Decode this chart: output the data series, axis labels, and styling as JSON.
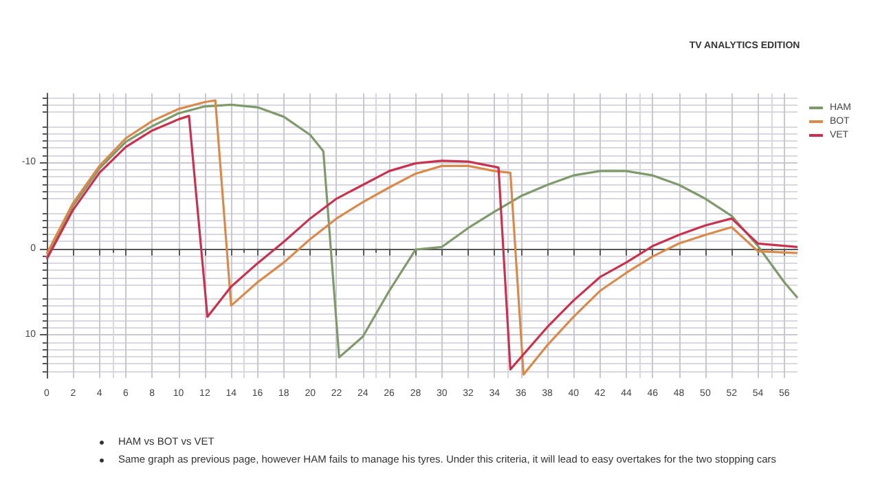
{
  "chart_data": {
    "type": "line",
    "subtitle": "TV ANALYTICS EDITION",
    "xlim": [
      0,
      57
    ],
    "xticks": [
      0,
      2,
      4,
      6,
      8,
      10,
      12,
      14,
      16,
      18,
      20,
      22,
      24,
      26,
      28,
      30,
      32,
      34,
      36,
      38,
      40,
      42,
      44,
      46,
      48,
      50,
      52,
      54,
      56
    ],
    "ylim": [
      15,
      -18
    ],
    "yticks": [
      -10,
      0,
      10
    ],
    "grid": true,
    "legend": "top right",
    "marker": "none",
    "line_style": "solid",
    "series": [
      {
        "name": "HAM",
        "color": "#7f9a6a",
        "x": [
          0,
          2,
          4,
          6,
          8,
          10,
          12,
          14,
          16,
          18,
          20,
          21,
          22.2,
          24,
          26,
          28,
          30,
          32,
          34,
          36,
          38,
          40,
          42,
          44,
          46,
          48,
          50,
          52,
          54,
          56,
          57
        ],
        "values": [
          1,
          -5,
          -9.3,
          -12.4,
          -14.2,
          -15.7,
          -16.5,
          -16.7,
          -16.4,
          -15.3,
          -13.2,
          -11.3,
          12.6,
          10.2,
          4.9,
          0.1,
          -0.2,
          -2.4,
          -4.3,
          -6.1,
          -7.4,
          -8.5,
          -9,
          -9,
          -8.5,
          -7.4,
          -5.8,
          -3.8,
          -0.3,
          3.9,
          5.7
        ]
      },
      {
        "name": "BOT",
        "color": "#d98a4a",
        "x": [
          0,
          2,
          4,
          6,
          8,
          10,
          12,
          12.8,
          14,
          16,
          18,
          20,
          22,
          24,
          26,
          28,
          30,
          32,
          34,
          35.2,
          36.2,
          38,
          40,
          42,
          44,
          46,
          48,
          50,
          52,
          54,
          57
        ],
        "values": [
          0.6,
          -5.3,
          -9.6,
          -12.8,
          -14.8,
          -16.2,
          -17,
          -17.2,
          6.6,
          3.9,
          1.6,
          -1.1,
          -3.5,
          -5.4,
          -7.1,
          -8.7,
          -9.6,
          -9.6,
          -9,
          -8.8,
          14.6,
          11.2,
          7.9,
          4.9,
          2.8,
          0.9,
          -0.6,
          -1.6,
          -2.5,
          0.3,
          0.5
        ]
      },
      {
        "name": "VET",
        "color": "#c8324e",
        "x": [
          0,
          2,
          4,
          6,
          8,
          10,
          10.8,
          12.2,
          14,
          16,
          18,
          20,
          22,
          24,
          26,
          28,
          30,
          32,
          34,
          34.3,
          35.2,
          36,
          38,
          40,
          42,
          44,
          46,
          48,
          50,
          52,
          54,
          57
        ],
        "values": [
          1.2,
          -4.5,
          -8.8,
          -11.8,
          -13.7,
          -15,
          -15.4,
          7.9,
          4.4,
          1.7,
          -0.8,
          -3.5,
          -5.8,
          -7.4,
          -9,
          -9.9,
          -10.2,
          -10.1,
          -9.5,
          -9.4,
          14,
          12.6,
          9.1,
          6,
          3.3,
          1.6,
          -0.3,
          -1.6,
          -2.7,
          -3.5,
          -0.6,
          -0.2
        ]
      }
    ],
    "annotations": [
      "HAM vs BOT vs VET",
      "Same graph as previous page, however HAM fails to manage his tyres. Under this criteria, it will lead to easy overtakes for the two stopping cars"
    ]
  }
}
